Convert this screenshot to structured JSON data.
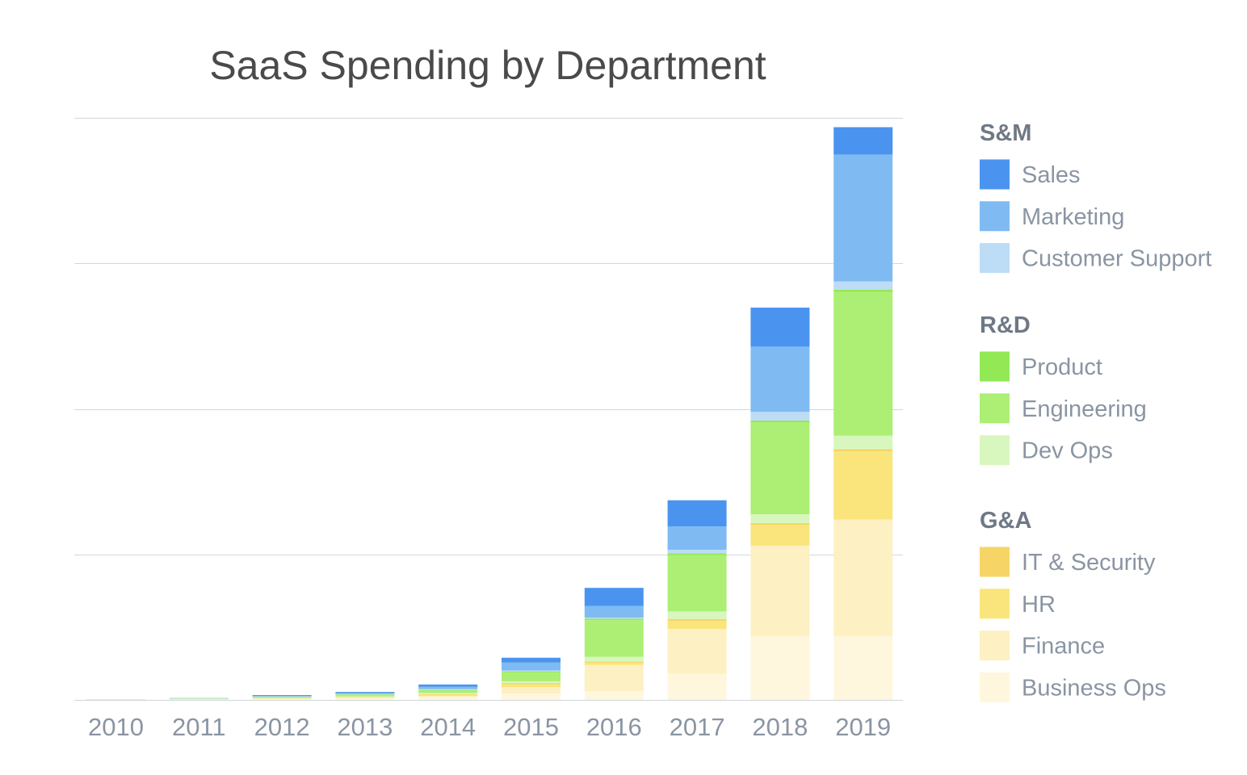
{
  "chart_data": {
    "type": "bar",
    "stacked": true,
    "title": "SaaS Spending by Department",
    "xlabel": "",
    "ylabel": "",
    "ylim": [
      0,
      100
    ],
    "grid": true,
    "legend_position": "right",
    "categories": [
      "2010",
      "2011",
      "2012",
      "2013",
      "2014",
      "2015",
      "2016",
      "2017",
      "2018",
      "2019"
    ],
    "series": [
      {
        "name": "Business Ops",
        "group": "G&A",
        "color": "#fff7dd",
        "values": [
          0.02,
          0.05,
          0.1,
          0.2,
          0.4,
          1.1,
          1.5,
          4.5,
          11.0,
          11.0
        ]
      },
      {
        "name": "Finance",
        "group": "G&A",
        "color": "#fdf0c2",
        "values": [
          0.02,
          0.05,
          0.1,
          0.2,
          0.3,
          1.1,
          4.5,
          7.7,
          15.5,
          20.0
        ]
      },
      {
        "name": "HR",
        "group": "G&A",
        "color": "#f9e57c",
        "values": [
          0.01,
          0.02,
          0.05,
          0.08,
          0.2,
          0.5,
          0.4,
          1.4,
          3.6,
          11.7
        ]
      },
      {
        "name": "IT & Security",
        "group": "G&A",
        "color": "#f6d466",
        "values": [
          0.0,
          0.01,
          0.02,
          0.04,
          0.1,
          0.2,
          0.2,
          0.3,
          0.3,
          0.4
        ]
      },
      {
        "name": "Dev Ops",
        "group": "R&D",
        "color": "#d8f7be",
        "values": [
          0.01,
          0.03,
          0.05,
          0.1,
          0.2,
          0.3,
          0.8,
          1.3,
          1.5,
          2.3
        ]
      },
      {
        "name": "Engineering",
        "group": "R&D",
        "color": "#acef74",
        "values": [
          0.02,
          0.08,
          0.2,
          0.3,
          0.5,
          1.5,
          6.3,
          9.7,
          15.8,
          24.7
        ]
      },
      {
        "name": "Product",
        "group": "R&D",
        "color": "#92e955",
        "values": [
          0.0,
          0.01,
          0.02,
          0.04,
          0.05,
          0.15,
          0.25,
          0.3,
          0.3,
          0.4
        ]
      },
      {
        "name": "Customer Support",
        "group": "S&M",
        "color": "#bddcf6",
        "values": [
          0.01,
          0.02,
          0.04,
          0.06,
          0.1,
          0.2,
          0.2,
          0.6,
          1.5,
          1.4
        ]
      },
      {
        "name": "Marketing",
        "group": "S&M",
        "color": "#7fbbf2",
        "values": [
          0.01,
          0.03,
          0.1,
          0.15,
          0.4,
          1.4,
          2.0,
          4.0,
          11.2,
          21.8
        ]
      },
      {
        "name": "Sales",
        "group": "S&M",
        "color": "#4a94ef",
        "values": [
          0.01,
          0.02,
          0.15,
          0.2,
          0.4,
          0.8,
          3.1,
          4.5,
          6.7,
          4.7
        ]
      }
    ],
    "legend": [
      {
        "header": "S&M",
        "items": [
          {
            "label": "Sales",
            "color": "#4a94ef"
          },
          {
            "label": "Marketing",
            "color": "#7fbbf2"
          },
          {
            "label": "Customer Support",
            "color": "#bddcf6"
          }
        ]
      },
      {
        "header": "R&D",
        "items": [
          {
            "label": "Product",
            "color": "#92e955"
          },
          {
            "label": "Engineering",
            "color": "#acef74"
          },
          {
            "label": "Dev Ops",
            "color": "#d8f7be"
          }
        ]
      },
      {
        "header": "G&A",
        "items": [
          {
            "label": "IT & Security",
            "color": "#f6d466"
          },
          {
            "label": "HR",
            "color": "#f9e57c"
          },
          {
            "label": "Finance",
            "color": "#fdf0c2"
          },
          {
            "label": "Business Ops",
            "color": "#fff7dd"
          }
        ]
      }
    ]
  }
}
